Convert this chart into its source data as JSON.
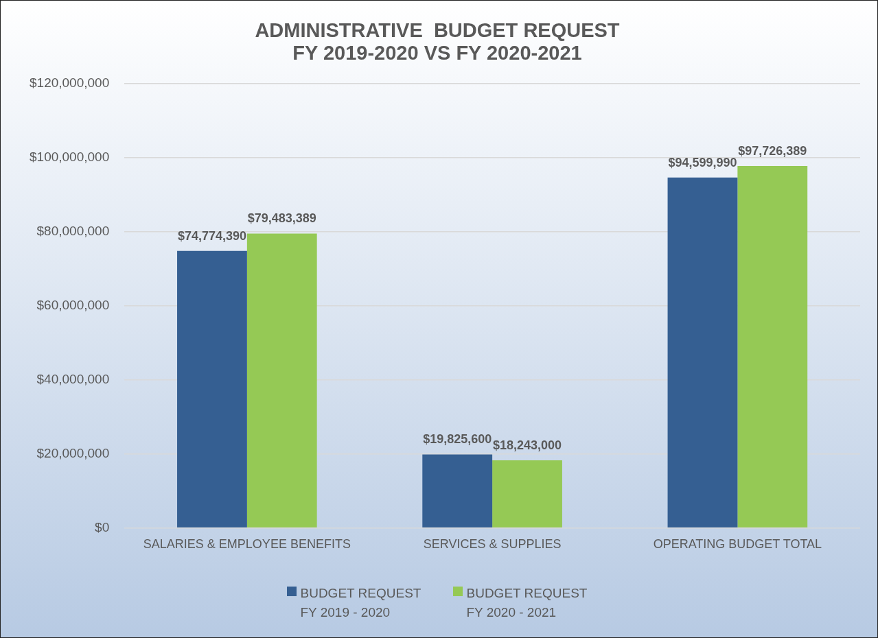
{
  "chart_data": {
    "type": "bar",
    "title": "ADMINISTRATIVE  BUDGET REQUEST\nFY 2019-2020 VS FY 2020-2021",
    "categories": [
      "SALARIES & EMPLOYEE BENEFITS",
      "SERVICES & SUPPLIES",
      "OPERATING BUDGET TOTAL"
    ],
    "series": [
      {
        "name": "BUDGET REQUEST FY 2019 - 2020",
        "color": "#355f92",
        "values": [
          74774390,
          19825600,
          94599990
        ],
        "value_labels": [
          "$74,774,390",
          "$19,825,600",
          "$94,599,990"
        ]
      },
      {
        "name": "BUDGET REQUEST FY 2020 - 2021",
        "color": "#95c955",
        "values": [
          79483389,
          18243000,
          97726389
        ],
        "value_labels": [
          "$79,483,389",
          "$18,243,000",
          "$97,726,389"
        ]
      }
    ],
    "ylim": [
      0,
      120000000
    ],
    "yticks": [
      {
        "value": 0,
        "label": "$0"
      },
      {
        "value": 20000000,
        "label": "$20,000,000"
      },
      {
        "value": 40000000,
        "label": "$40,000,000"
      },
      {
        "value": 60000000,
        "label": "$60,000,000"
      },
      {
        "value": 80000000,
        "label": "$80,000,000"
      },
      {
        "value": 100000000,
        "label": "$100,000,000"
      },
      {
        "value": 120000000,
        "label": "$120,000,000"
      }
    ],
    "grid": "y",
    "legend": "bottom"
  }
}
